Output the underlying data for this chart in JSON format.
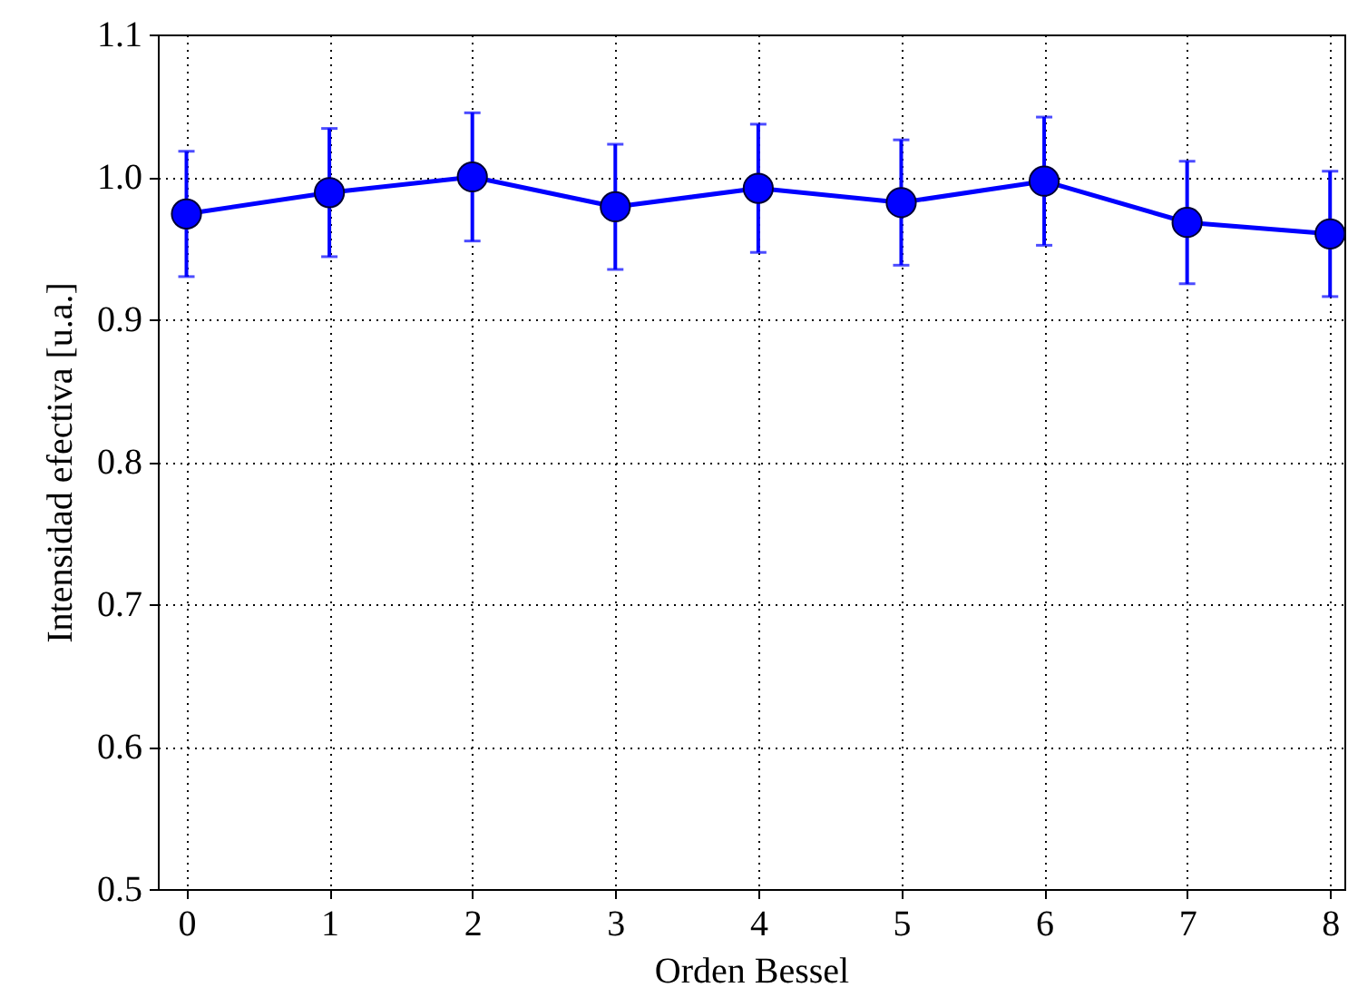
{
  "chart_data": {
    "type": "line",
    "xlabel": "Orden Bessel",
    "ylabel": "Intensidad efectiva [u.a.]",
    "x": [
      0,
      1,
      2,
      3,
      4,
      5,
      6,
      7,
      8
    ],
    "series": [
      {
        "color": "#0000ff",
        "values": [
          0.974,
          0.989,
          1.0,
          0.979,
          0.992,
          0.982,
          0.997,
          0.968,
          0.96
        ],
        "errors": [
          0.044,
          0.045,
          0.045,
          0.044,
          0.045,
          0.044,
          0.045,
          0.043,
          0.044
        ]
      }
    ],
    "xlim": [
      -0.2,
      8.1
    ],
    "xticks": [
      0,
      1,
      2,
      3,
      4,
      5,
      6,
      7,
      8
    ],
    "ylim": [
      0.5,
      1.1
    ],
    "yticks": [
      0.5,
      0.6,
      0.7,
      0.8,
      0.9,
      {
        "value": 1.0,
        "label": "1.0"
      },
      1.1
    ],
    "grid": true,
    "marker": "circle",
    "line_style": "solid"
  }
}
